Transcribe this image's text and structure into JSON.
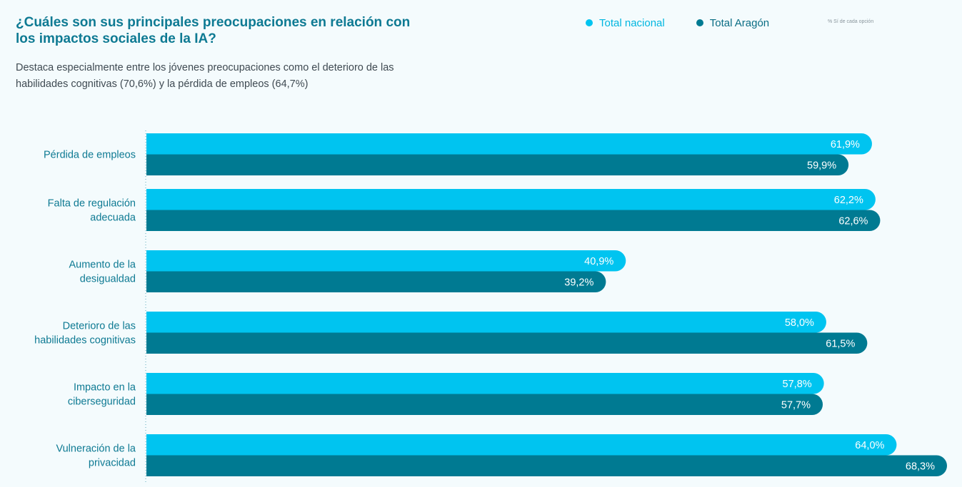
{
  "header": {
    "title": "¿Cuáles son sus principales preocupaciones en relación con los impactos sociales de la IA?",
    "subtitle": "Destaca especialmente entre los jóvenes preocupaciones como el deterioro de las habilidades cognitivas (70,6%) y la pérdida de empleos (64,7%)",
    "note": "% Sí de cada opción"
  },
  "colors": {
    "nacional": "#00c4f0",
    "aragon": "#007a92",
    "label": "#0e7a93"
  },
  "chart_data": {
    "type": "bar",
    "orientation": "horizontal",
    "title": "¿Cuáles son sus principales preocupaciones en relación con los impactos sociales de la IA?",
    "categories": [
      [
        "Pérdida de empleos"
      ],
      [
        "Falta de regulación",
        "adecuada"
      ],
      [
        "Aumento de la",
        "desigualdad"
      ],
      [
        "Deterioro de las",
        "habilidades cognitivas"
      ],
      [
        "Impacto en la",
        "ciberseguridad"
      ],
      [
        "Vulneración de la",
        "privacidad"
      ]
    ],
    "series": [
      {
        "name": "Total nacional",
        "values": [
          61.9,
          62.2,
          40.9,
          58.0,
          57.8,
          64.0
        ],
        "labels": [
          "61,9%",
          "62,2%",
          "40,9%",
          "58,0%",
          "57,8%",
          "64,0%"
        ]
      },
      {
        "name": "Total Aragón",
        "values": [
          59.9,
          62.6,
          39.2,
          61.5,
          57.7,
          68.3
        ],
        "labels": [
          "59,9%",
          "62,6%",
          "39,2%",
          "61,5%",
          "57,7%",
          "68,3%"
        ]
      }
    ],
    "xlim": [
      0,
      68.3
    ],
    "grid": false,
    "legend_position": "top-right"
  }
}
